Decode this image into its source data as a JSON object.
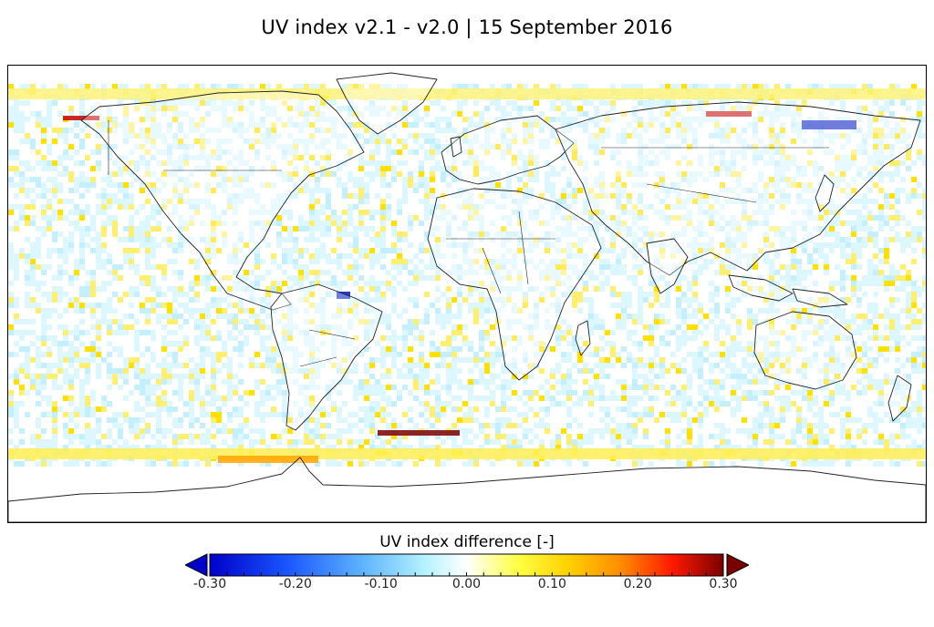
{
  "title": "UV index v2.1 - v2.0  |  15 September 2016",
  "colorbar": {
    "label": "UV index difference  [-]",
    "min": -0.3,
    "max": 0.3,
    "ticks": [
      "-0.30",
      "-0.20",
      "-0.10",
      "0.00",
      "0.10",
      "0.20",
      "0.30"
    ],
    "colors": [
      "#0000c8",
      "#0a3cff",
      "#4ea6ff",
      "#9fe8ff",
      "#ffffff",
      "#ffff55",
      "#ffd000",
      "#ff8c00",
      "#ff1a00",
      "#7a0000"
    ]
  },
  "map": {
    "projection": "equirectangular",
    "lon_range": [
      -180,
      180
    ],
    "lat_range": [
      -90,
      90
    ],
    "features": [
      "coastlines",
      "country-borders"
    ],
    "colors": {
      "ocean_noise_neg": "#d8f6ff",
      "ocean_noise_pos": "#ffee66",
      "border": "#111111"
    }
  }
}
